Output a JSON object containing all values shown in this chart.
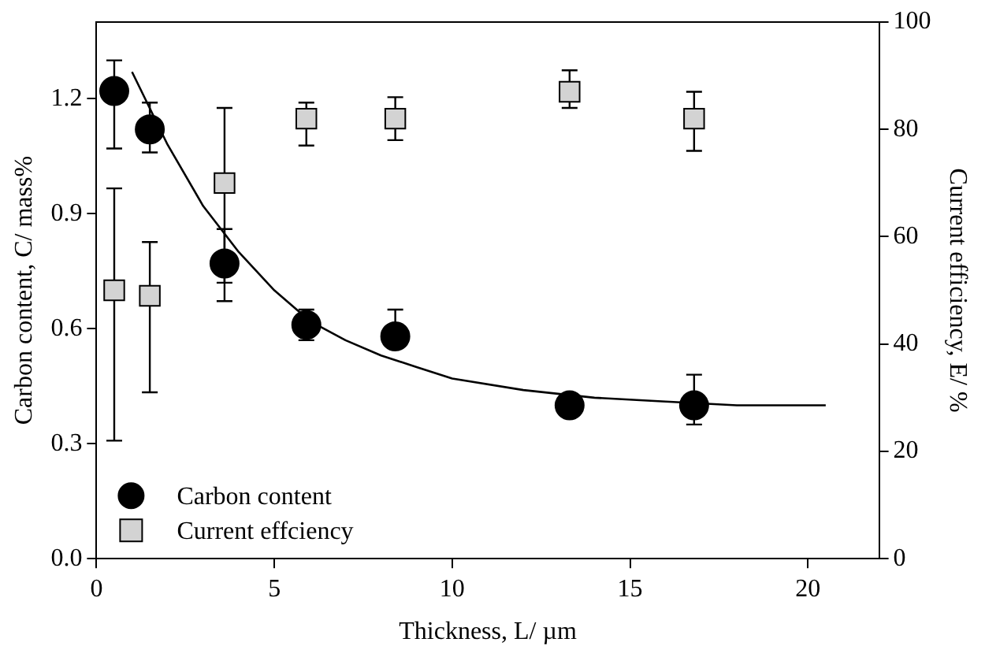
{
  "chart_data": {
    "type": "scatter",
    "xlabel": "Thickness, L/ µm",
    "ylabel": "Carbon content, C/ mass%",
    "y2label": "Current efficiency, E/ %",
    "xlim": [
      0,
      22
    ],
    "xticks": [
      0,
      5,
      10,
      15,
      20
    ],
    "ylim": [
      0,
      1.4
    ],
    "yticks": [
      {
        "value": 0,
        "label": "0.0"
      },
      {
        "value": 0.3,
        "label": "0.3"
      },
      {
        "value": 0.6,
        "label": "0.6"
      },
      {
        "value": 0.9,
        "label": "0.9"
      },
      {
        "value": 1.2,
        "label": "1.2"
      }
    ],
    "y2lim": [
      0,
      100
    ],
    "y2ticks": [
      0,
      20,
      40,
      60,
      80,
      100
    ],
    "grid": false,
    "legend": "bottom left",
    "series": [
      {
        "name": "Carbon content",
        "marker": "circle",
        "color": "#000000",
        "x": [
          0.5,
          1.5,
          3.6,
          5.9,
          8.4,
          13.3,
          16.8
        ],
        "values": [
          1.22,
          1.12,
          0.77,
          0.61,
          0.58,
          0.4,
          0.4
        ],
        "errors": [
          [
            1.07,
            1.3
          ],
          [
            1.06,
            1.19
          ],
          [
            0.72,
            0.86
          ],
          [
            0.57,
            0.65
          ],
          [
            0.55,
            0.65
          ],
          null,
          [
            0.35,
            0.48
          ]
        ]
      },
      {
        "name": "Current effciency",
        "marker": "square",
        "color": "#d3d3d3",
        "axis": "y2",
        "x": [
          0.5,
          1.5,
          3.6,
          5.9,
          8.4,
          13.3,
          16.8
        ],
        "values": [
          50,
          49,
          70,
          82,
          82,
          87,
          82
        ],
        "errors": [
          [
            22,
            69
          ],
          [
            31,
            59
          ],
          [
            48,
            84
          ],
          [
            77,
            85
          ],
          [
            78,
            86
          ],
          [
            84,
            91
          ],
          [
            76,
            87
          ]
        ]
      },
      {
        "type": "line",
        "marker": "none",
        "color": "#000000",
        "x": [
          1.0,
          2,
          3,
          4,
          5,
          6,
          7,
          8,
          9,
          10,
          12,
          14,
          16,
          18,
          20.5
        ],
        "values": [
          1.27,
          1.08,
          0.92,
          0.8,
          0.7,
          0.62,
          0.57,
          0.53,
          0.5,
          0.47,
          0.44,
          0.42,
          0.41,
          0.4,
          0.4
        ]
      }
    ]
  }
}
